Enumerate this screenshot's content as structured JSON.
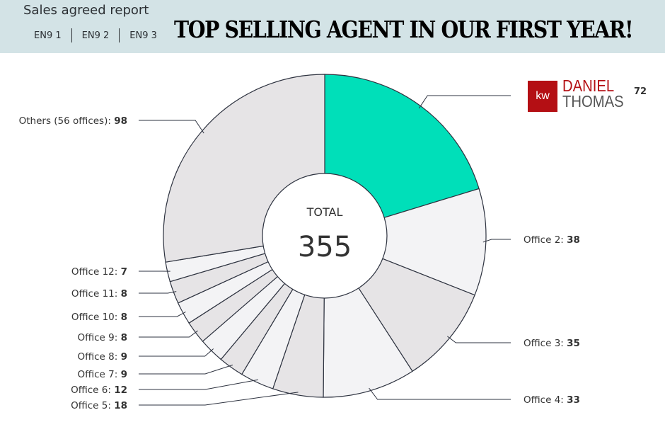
{
  "header": {
    "report_title": "Sales agreed report",
    "tabs": [
      "EN9 1",
      "EN9 2",
      "EN9 3"
    ],
    "headline": "TOP SELLING AGENT IN OUR FIRST YEAR!"
  },
  "agent_logo": {
    "mark": "kw",
    "first_name": "DANIEL",
    "last_name": "THOMAS",
    "value": "72"
  },
  "center": {
    "label": "TOTAL",
    "value": "355"
  },
  "colors": {
    "highlight": "#00dfb9",
    "light": "#f3f3f5",
    "mid": "#e6e4e6",
    "stroke": "#2e3340",
    "logo": "#b40f14"
  },
  "chart_data": {
    "type": "pie",
    "donut": true,
    "start": "top",
    "direction": "clockwise",
    "slices": [
      {
        "label": "Daniel Thomas",
        "value": 72,
        "highlight": true
      },
      {
        "label": "Office 2",
        "value": 38
      },
      {
        "label": "Office 3",
        "value": 35
      },
      {
        "label": "Office 4",
        "value": 33
      },
      {
        "label": "Office 5",
        "value": 18
      },
      {
        "label": "Office 6",
        "value": 12
      },
      {
        "label": "Office 7",
        "value": 9
      },
      {
        "label": "Office 8",
        "value": 9
      },
      {
        "label": "Office 9",
        "value": 8
      },
      {
        "label": "Office 10",
        "value": 8
      },
      {
        "label": "Office 11",
        "value": 8
      },
      {
        "label": "Office 12",
        "value": 7
      },
      {
        "label": "Others (56 offices)",
        "value": 98
      }
    ],
    "total": 355
  }
}
